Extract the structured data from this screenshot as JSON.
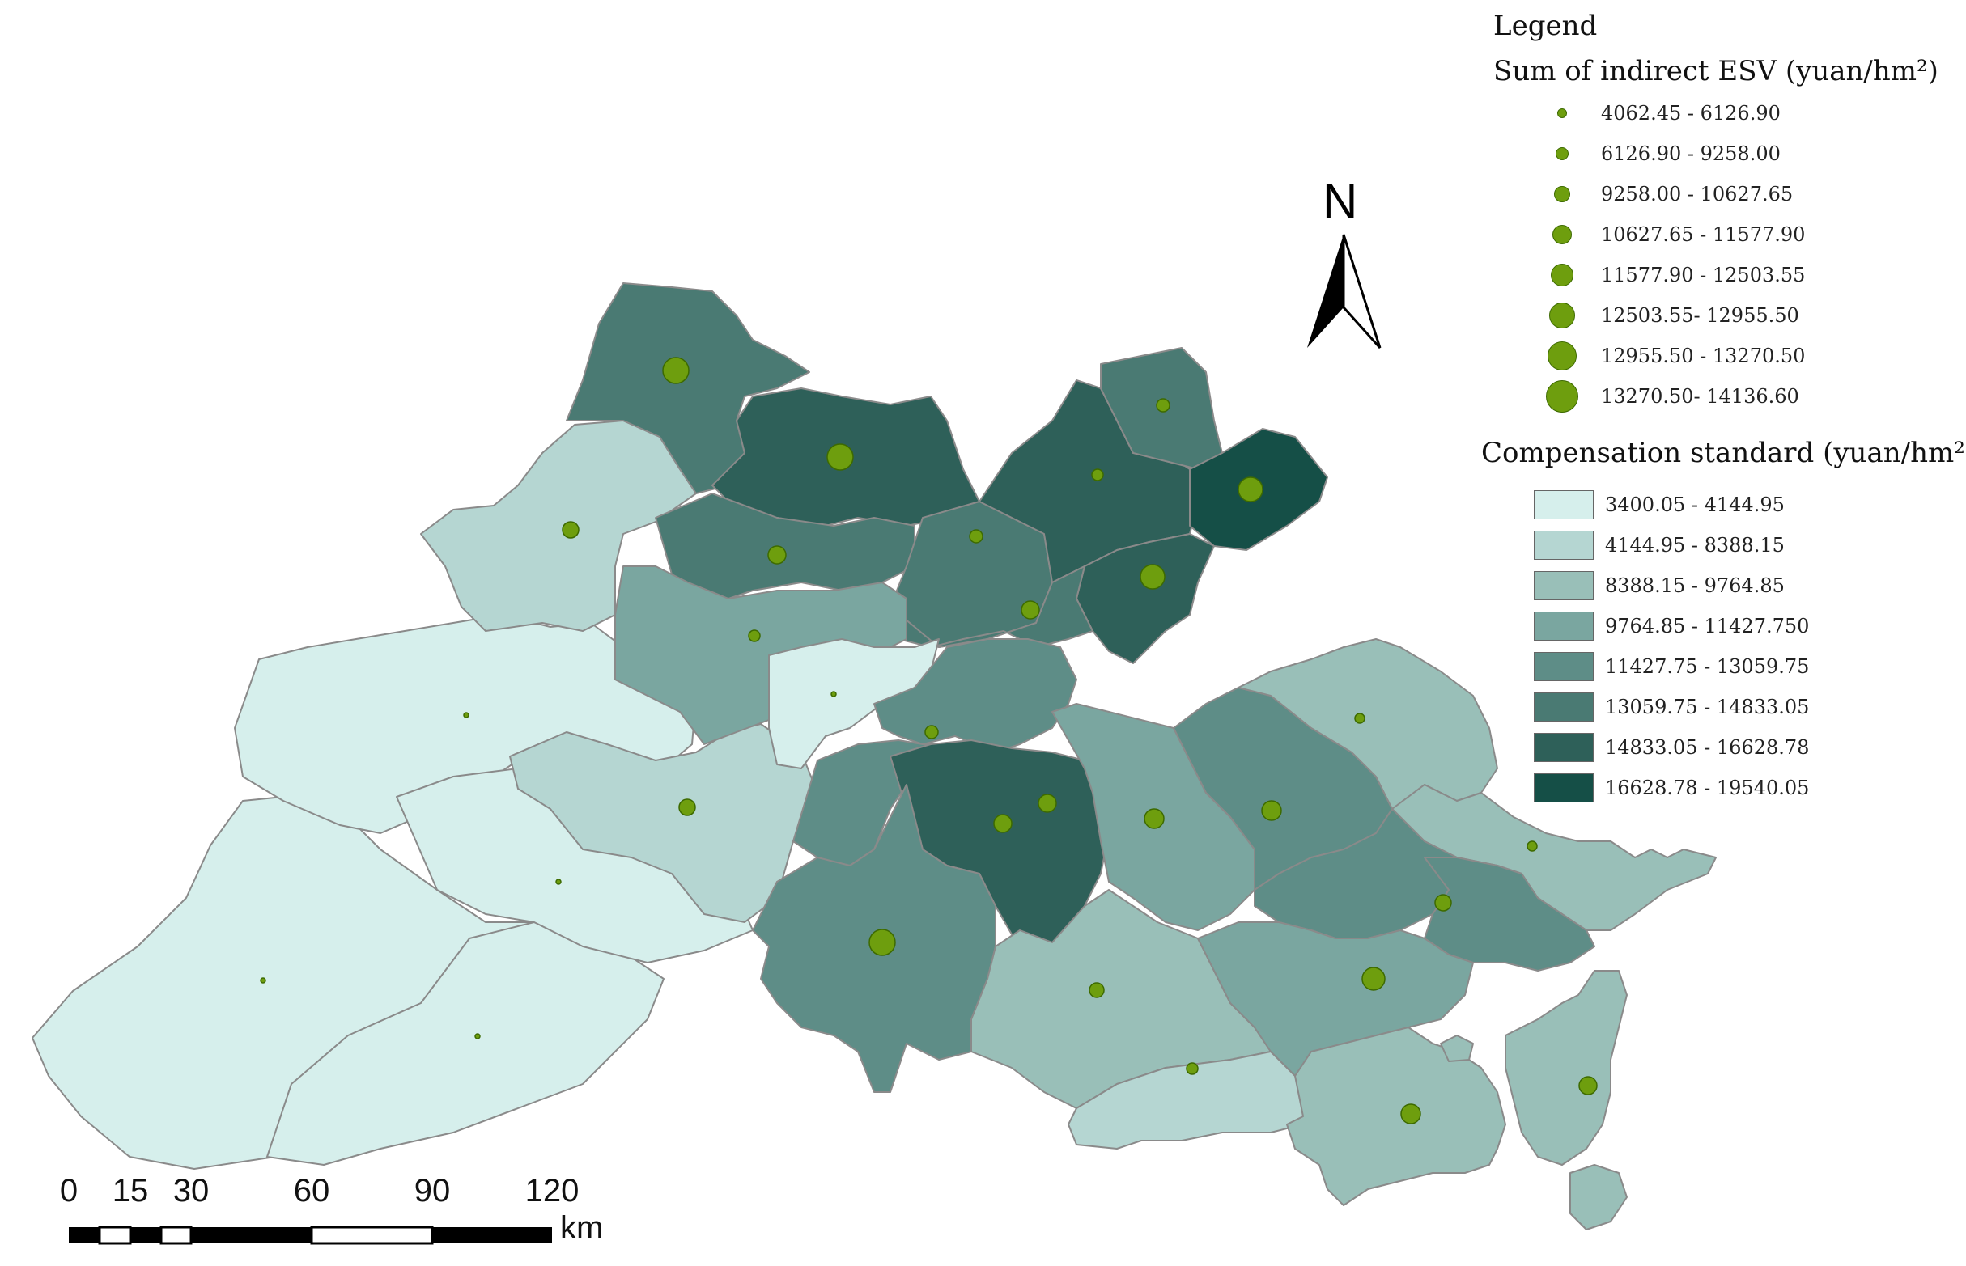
{
  "legend": {
    "title": "Legend",
    "symbol_title": "Sum of indirect ESV (yuan/hm²)",
    "symbol_classes": [
      {
        "label": "4062.45 - 6126.90",
        "size": 1
      },
      {
        "label": "6126.90 - 9258.00",
        "size": 2
      },
      {
        "label": "9258.00 - 10627.65",
        "size": 3
      },
      {
        "label": "10627.65 - 11577.90",
        "size": 4
      },
      {
        "label": "11577.90 - 12503.55",
        "size": 5
      },
      {
        "label": "12503.55- 12955.50",
        "size": 6
      },
      {
        "label": "12955.50 - 13270.50",
        "size": 7
      },
      {
        "label": "13270.50- 14136.60",
        "size": 8
      }
    ],
    "color_title": "Compensation standard (yuan/hm²)",
    "color_classes": [
      {
        "label": "3400.05 - 4144.95",
        "color": "#d6efec"
      },
      {
        "label": "4144.95 - 8388.15",
        "color": "#b5d6d2"
      },
      {
        "label": "8388.15 - 9764.85",
        "color": "#99bfb8"
      },
      {
        "label": "9764.85 - 11427.750",
        "color": "#7aa6a0"
      },
      {
        "label": "11427.75 - 13059.75",
        "color": "#5e8d87"
      },
      {
        "label": "13059.75 - 14833.05",
        "color": "#4a7a73"
      },
      {
        "label": "14833.05 - 16628.78",
        "color": "#2e6059"
      },
      {
        "label": "16628.78 - 19540.05",
        "color": "#154f47"
      }
    ]
  },
  "north_arrow": {
    "label": "N"
  },
  "scale_bar": {
    "ticks": [
      "0",
      "15",
      "30",
      "60",
      "90",
      "120"
    ],
    "unit": "km"
  },
  "colors": {
    "point_fill": "#6e9e0e",
    "point_stroke": "#3d6a00",
    "region_stroke": "#888888"
  }
}
